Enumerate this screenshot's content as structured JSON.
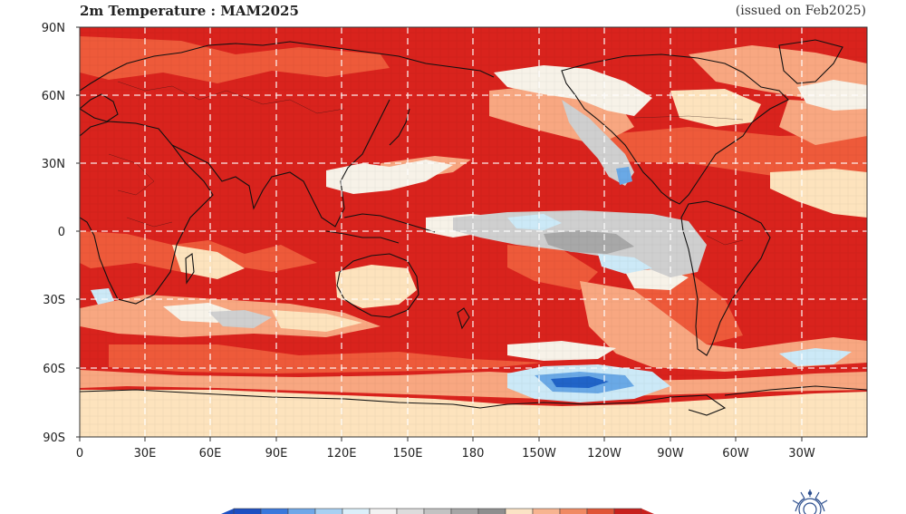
{
  "map": {
    "title": "2m Temperature : MAM2025",
    "issued": "(issued on Feb2025)",
    "lat_labels": [
      "90N",
      "60N",
      "30N",
      "0",
      "30S",
      "60S",
      "90S"
    ],
    "lon_labels": [
      "0",
      "30E",
      "60E",
      "90E",
      "120E",
      "150E",
      "180",
      "150W",
      "120W",
      "90W",
      "60W",
      "30W"
    ],
    "colors": {
      "strong_warm": "#d9231d",
      "warm": "#ee5a3a",
      "mild_warm": "#f8a781",
      "slight_warm": "#fde3bd",
      "neutral": "#f7f2e8",
      "grey": "#cfcfcf",
      "dark_grey": "#a8a8a8",
      "light_blue": "#cce9f7",
      "blue": "#6aa9e6",
      "deep_blue": "#2164c8",
      "coast": "#111111",
      "grid": "#ffffff"
    }
  },
  "colorbar": {
    "colors": [
      "#1c4fc2",
      "#3a78dc",
      "#6fa7e8",
      "#a8d0f2",
      "#dbeffa",
      "#f2f2f2",
      "#dcdcdc",
      "#c2c2c2",
      "#a6a6a6",
      "#8e8e8e",
      "#fbe3c5",
      "#f7b490",
      "#f08a63",
      "#e05537",
      "#c8201d"
    ]
  },
  "logo": {
    "icon": "wmo-emblem-icon"
  }
}
